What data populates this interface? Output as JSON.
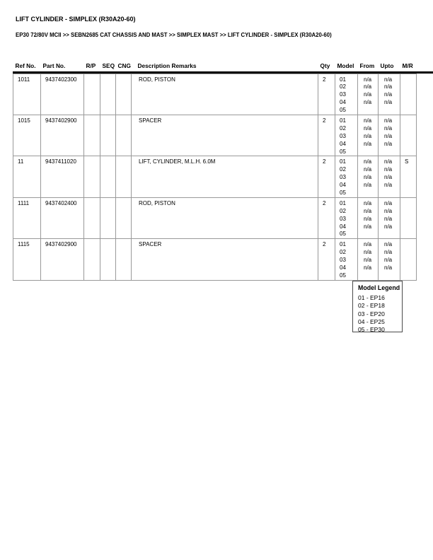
{
  "page": {
    "title": "LIFT CYLINDER - SIMPLEX (R30A20-60)",
    "breadcrumb": "EP30 72/80V MCII >> SEBN2685 CAT CHASSIS AND MAST >> SIMPLEX MAST >> LIFT CYLINDER - SIMPLEX (R30A20-60)"
  },
  "colors": {
    "text": "#000000",
    "table_grid": "#999999",
    "header_rule": "#000000",
    "legend_border": "#4a4a4a"
  },
  "table": {
    "headers": [
      "Ref No.",
      "Part No.",
      "R/P",
      "SEQ",
      "CNG",
      "Description Remarks",
      "Qty",
      "Model",
      "From",
      "Upto",
      "M/R"
    ],
    "rows": [
      {
        "ref_no": "1011",
        "part_no": "9437402300",
        "rp": "",
        "seq": "",
        "cng": "",
        "description": "ROD, PISTON",
        "qty": "2",
        "models": [
          "01",
          "02",
          "03",
          "04",
          "05"
        ],
        "from": [
          "n/a",
          "n/a",
          "n/a",
          "n/a"
        ],
        "upto": [
          "n/a",
          "n/a",
          "n/a",
          "n/a"
        ],
        "mr": ""
      },
      {
        "ref_no": "1015",
        "part_no": "9437402900",
        "rp": "",
        "seq": "",
        "cng": "",
        "description": "SPACER",
        "qty": "2",
        "models": [
          "01",
          "02",
          "03",
          "04",
          "05"
        ],
        "from": [
          "n/a",
          "n/a",
          "n/a",
          "n/a"
        ],
        "upto": [
          "n/a",
          "n/a",
          "n/a",
          "n/a"
        ],
        "mr": ""
      },
      {
        "ref_no": "11",
        "part_no": "9437411020",
        "rp": "",
        "seq": "",
        "cng": "",
        "description": "LIFT, CYLINDER, M.L.H. 6.0M",
        "qty": "2",
        "models": [
          "01",
          "02",
          "03",
          "04",
          "05"
        ],
        "from": [
          "n/a",
          "n/a",
          "n/a",
          "n/a"
        ],
        "upto": [
          "n/a",
          "n/a",
          "n/a",
          "n/a"
        ],
        "mr": "S"
      },
      {
        "ref_no": "1111",
        "part_no": "9437402400",
        "rp": "",
        "seq": "",
        "cng": "",
        "description": "ROD, PISTON",
        "qty": "2",
        "models": [
          "01",
          "02",
          "03",
          "04",
          "05"
        ],
        "from": [
          "n/a",
          "n/a",
          "n/a",
          "n/a"
        ],
        "upto": [
          "n/a",
          "n/a",
          "n/a",
          "n/a"
        ],
        "mr": ""
      },
      {
        "ref_no": "1115",
        "part_no": "9437402900",
        "rp": "",
        "seq": "",
        "cng": "",
        "description": "SPACER",
        "qty": "2",
        "models": [
          "01",
          "02",
          "03",
          "04",
          "05"
        ],
        "from": [
          "n/a",
          "n/a",
          "n/a",
          "n/a"
        ],
        "upto": [
          "n/a",
          "n/a",
          "n/a",
          "n/a"
        ],
        "mr": ""
      }
    ]
  },
  "legend": {
    "title": "Model Legend",
    "items": [
      "01 - EP16",
      "02 - EP18",
      "03 - EP20",
      "04 - EP25",
      "05 - EP30"
    ]
  }
}
